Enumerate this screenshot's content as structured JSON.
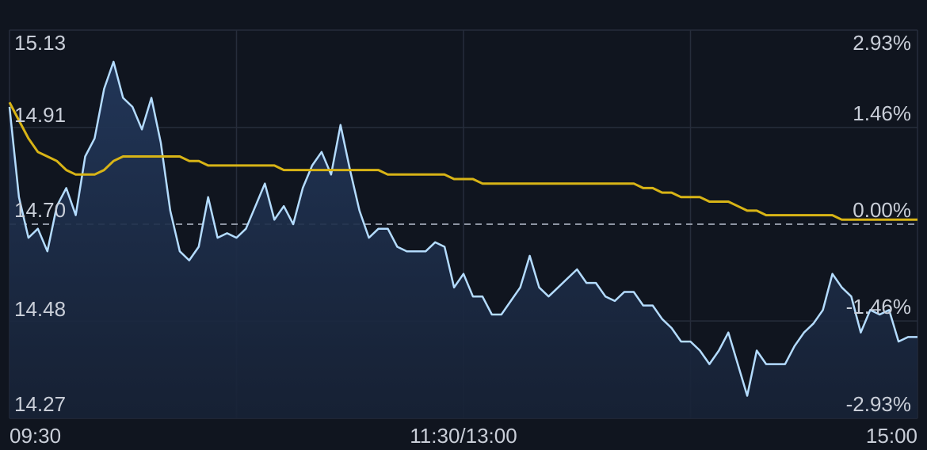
{
  "chart_data": {
    "type": "line",
    "xlim": [
      0,
      96
    ],
    "xticks": [
      {
        "value": 0,
        "label": "09:30"
      },
      {
        "value": 24,
        "label": null
      },
      {
        "value": 48,
        "label": "11:30/13:00"
      },
      {
        "value": 72,
        "label": null
      },
      {
        "value": 96,
        "label": "15:00"
      }
    ],
    "ylim": [
      14.27,
      15.13
    ],
    "yticks": [
      15.13,
      14.91,
      {
        "value": 14.7,
        "label": "14.70"
      },
      14.48,
      14.27
    ],
    "y2lim": [
      -2.93,
      2.93
    ],
    "y2ticks": [
      {
        "value": 2.93,
        "label": "2.93%"
      },
      {
        "value": 1.46,
        "label": "1.46%"
      },
      {
        "value": 0,
        "label": "0.00%"
      },
      {
        "value": -1.46,
        "label": "-1.46%"
      },
      {
        "value": -2.93,
        "label": "-2.93%"
      }
    ],
    "grid": true,
    "series": [
      {
        "color": "#b4dcff",
        "fill": true,
        "values": [
          14.96,
          14.76,
          14.67,
          14.69,
          14.64,
          14.74,
          14.78,
          14.72,
          14.85,
          14.89,
          15.0,
          15.06,
          14.98,
          14.96,
          14.91,
          14.98,
          14.88,
          14.73,
          14.64,
          14.62,
          14.65,
          14.76,
          14.67,
          14.68,
          14.67,
          14.69,
          14.74,
          14.79,
          14.71,
          14.74,
          14.7,
          14.78,
          14.83,
          14.86,
          14.81,
          14.92,
          14.82,
          14.73,
          14.67,
          14.69,
          14.69,
          14.65,
          14.64,
          14.64,
          14.64,
          14.66,
          14.65,
          14.56,
          14.59,
          14.54,
          14.54,
          14.5,
          14.5,
          14.53,
          14.56,
          14.63,
          14.56,
          14.54,
          14.56,
          14.58,
          14.6,
          14.57,
          14.57,
          14.54,
          14.53,
          14.55,
          14.55,
          14.52,
          14.52,
          14.49,
          14.47,
          14.44,
          14.44,
          14.42,
          14.39,
          14.42,
          14.46,
          14.39,
          14.32,
          14.42,
          14.39,
          14.39,
          14.39,
          14.43,
          14.46,
          14.48,
          14.51,
          14.59,
          14.56,
          14.54,
          14.46,
          14.51,
          14.5,
          14.51,
          14.44,
          14.45,
          14.45
        ]
      },
      {
        "color": "#d8b416",
        "fill": false,
        "values": [
          14.97,
          14.93,
          14.89,
          14.86,
          14.85,
          14.84,
          14.82,
          14.81,
          14.81,
          14.81,
          14.82,
          14.84,
          14.85,
          14.85,
          14.85,
          14.85,
          14.85,
          14.85,
          14.85,
          14.84,
          14.84,
          14.83,
          14.83,
          14.83,
          14.83,
          14.83,
          14.83,
          14.83,
          14.83,
          14.82,
          14.82,
          14.82,
          14.82,
          14.82,
          14.82,
          14.82,
          14.82,
          14.82,
          14.82,
          14.82,
          14.81,
          14.81,
          14.81,
          14.81,
          14.81,
          14.81,
          14.81,
          14.8,
          14.8,
          14.8,
          14.79,
          14.79,
          14.79,
          14.79,
          14.79,
          14.79,
          14.79,
          14.79,
          14.79,
          14.79,
          14.79,
          14.79,
          14.79,
          14.79,
          14.79,
          14.79,
          14.79,
          14.78,
          14.78,
          14.77,
          14.77,
          14.76,
          14.76,
          14.76,
          14.75,
          14.75,
          14.75,
          14.74,
          14.73,
          14.73,
          14.72,
          14.72,
          14.72,
          14.72,
          14.72,
          14.72,
          14.72,
          14.72,
          14.71,
          14.71,
          14.71,
          14.71,
          14.71,
          14.71,
          14.71,
          14.71,
          14.71
        ]
      }
    ]
  }
}
